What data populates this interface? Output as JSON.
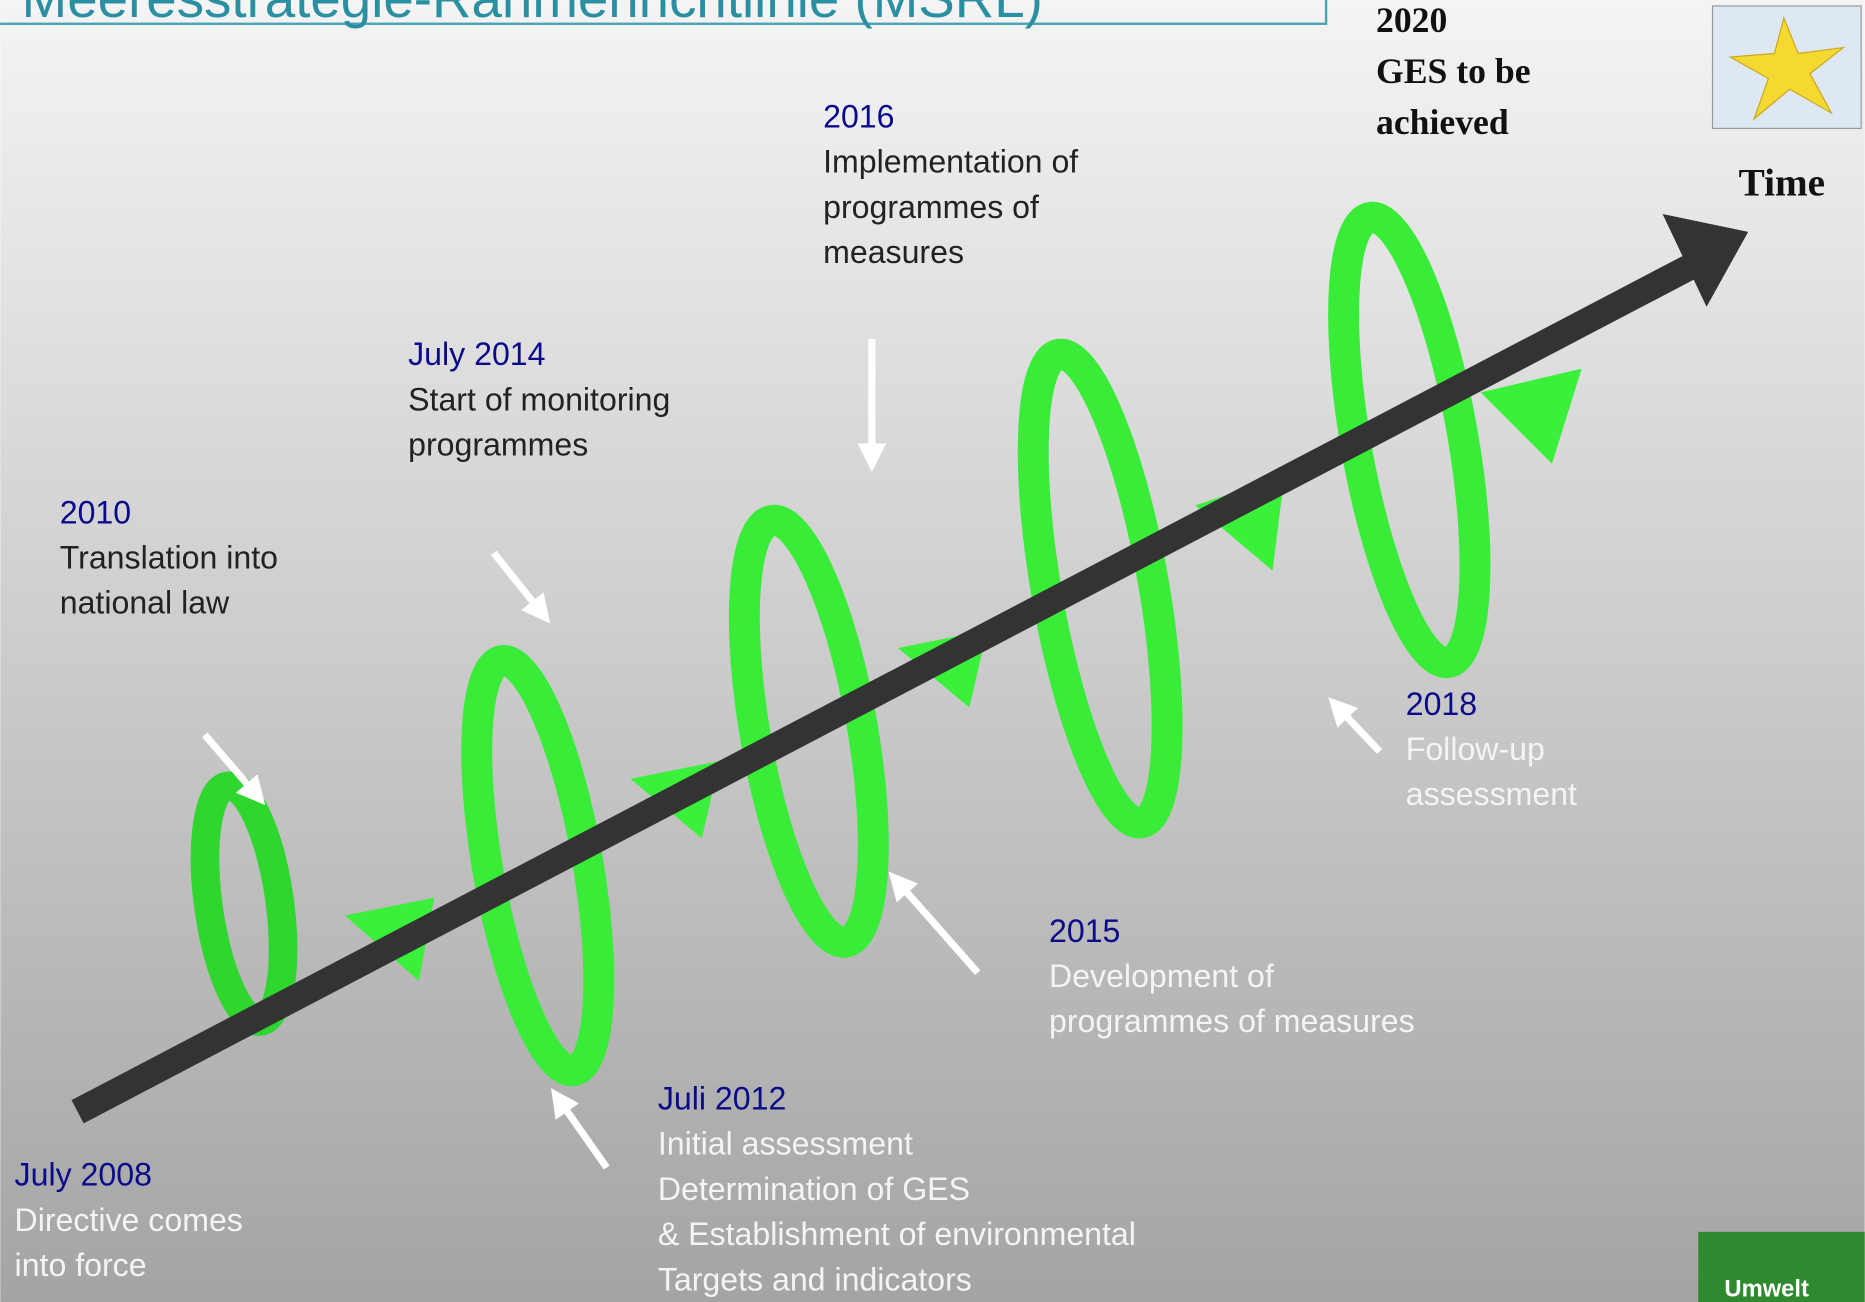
{
  "title": "Meeresstrategie-Rahmenrichtlinie (MSRL)",
  "goal": {
    "lines": [
      "2020",
      "GES to be",
      "achieved"
    ]
  },
  "time_label": "Time",
  "milestones": [
    {
      "date": "July 2008",
      "lines": [
        "Directive comes",
        "into force"
      ]
    },
    {
      "date": "2010",
      "lines": [
        "Translation into",
        "national law"
      ]
    },
    {
      "date": "Juli 2012",
      "lines": [
        "Initial assessment",
        "Determination of GES",
        "& Establishment of environmental",
        "Targets and indicators"
      ]
    },
    {
      "date": "July 2014",
      "lines": [
        "Start of monitoring",
        "programmes"
      ]
    },
    {
      "date": "2015",
      "lines": [
        "Development of",
        "programmes of measures"
      ]
    },
    {
      "date": "2016",
      "lines": [
        "Implementation of",
        "programmes of",
        "measures"
      ]
    },
    {
      "date": "2018",
      "lines": [
        "Follow-up",
        "assessment"
      ]
    }
  ],
  "logo": "Umwelt"
}
